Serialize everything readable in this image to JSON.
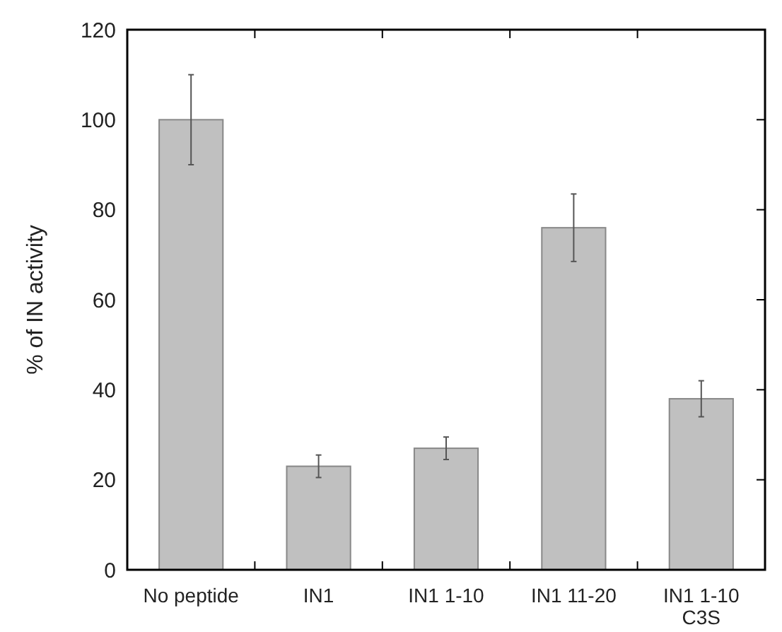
{
  "chart_data": {
    "type": "bar",
    "ylabel": "% of IN activity",
    "categories": [
      "No peptide",
      "IN1",
      "IN1 1-10",
      "IN1 11-20",
      "IN1 1-10 C3S"
    ],
    "values": [
      100,
      23,
      27,
      76,
      38
    ],
    "errors": [
      10,
      2.5,
      2.5,
      7.5,
      4
    ],
    "color": "#c0c0c0",
    "ylim": [
      0,
      120
    ],
    "yticks": [
      0,
      20,
      40,
      60,
      80,
      100,
      120
    ],
    "grid": false
  }
}
